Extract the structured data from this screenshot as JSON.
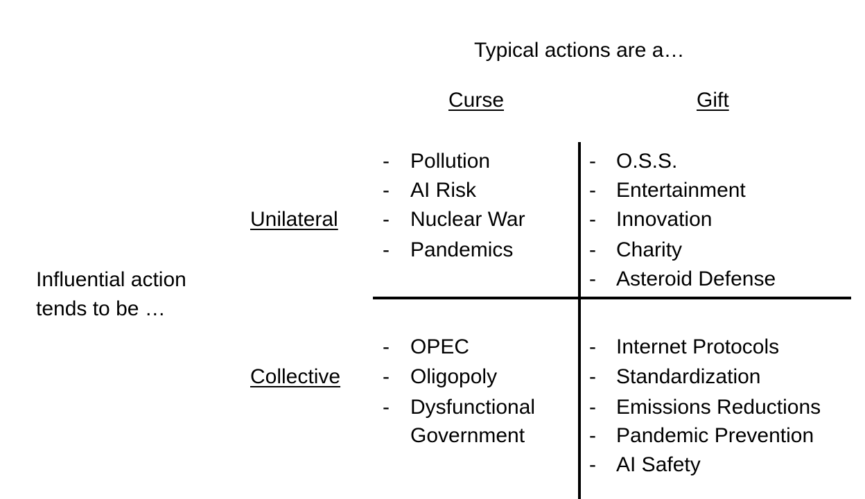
{
  "header": {
    "columns_title": "Typical actions are a…",
    "col_curse": "Curse",
    "col_gift": "Gift"
  },
  "rows": {
    "row_title_line1": "Influential action",
    "row_title_line2": "tends to be …",
    "unilateral": "Unilateral",
    "collective": "Collective"
  },
  "cells": {
    "unilateral_curse": [
      "Pollution",
      "AI Risk",
      "Nuclear War",
      "Pandemics"
    ],
    "unilateral_gift": [
      "O.S.S.",
      "Entertainment",
      "Innovation",
      "Charity",
      "Asteroid Defense"
    ],
    "collective_curse": [
      "OPEC",
      "Oligopoly",
      "Dysfunctional",
      "Government"
    ],
    "collective_gift": [
      "Internet Protocols",
      "Standardization",
      "Emissions Reductions",
      "Pandemic Prevention",
      "AI Safety"
    ]
  },
  "dash": "-"
}
